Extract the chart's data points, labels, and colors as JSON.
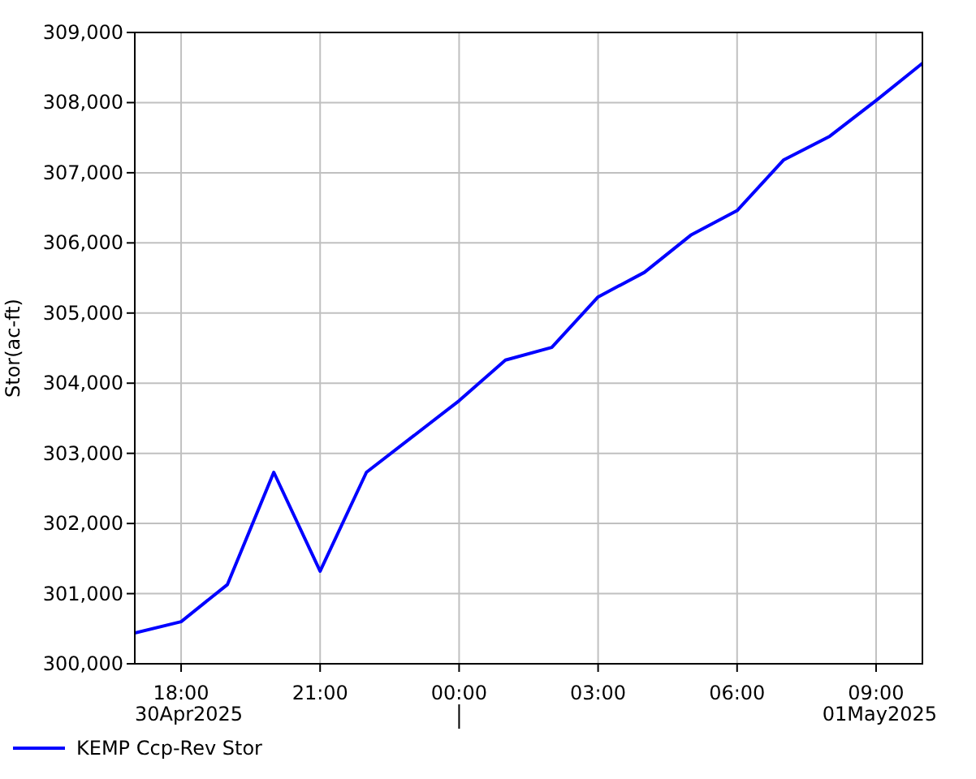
{
  "chart_data": {
    "type": "line",
    "ylabel": "Stor(ac-ft)",
    "x": [
      "2025-04-30T17:00",
      "2025-04-30T18:00",
      "2025-04-30T19:00",
      "2025-04-30T20:00",
      "2025-04-30T21:00",
      "2025-04-30T22:00",
      "2025-04-30T23:00",
      "2025-05-01T00:00",
      "2025-05-01T01:00",
      "2025-05-01T02:00",
      "2025-05-01T03:00",
      "2025-05-01T04:00",
      "2025-05-01T05:00",
      "2025-05-01T06:00",
      "2025-05-01T07:00",
      "2025-05-01T08:00",
      "2025-05-01T09:00",
      "2025-05-01T10:00"
    ],
    "series": [
      {
        "name": "KEMP Ccp-Rev Stor",
        "color": "#0000ff",
        "values": [
          300440,
          300600,
          301130,
          302730,
          301320,
          302730,
          303240,
          303750,
          304330,
          304510,
          305230,
          305580,
          306110,
          306460,
          307180,
          307520,
          308030,
          308560
        ]
      }
    ],
    "xlim": [
      "2025-04-30T17:00",
      "2025-05-01T10:00"
    ],
    "xticks": [
      {
        "value": "2025-04-30T18:00",
        "label": "18:00"
      },
      {
        "value": "2025-04-30T21:00",
        "label": "21:00"
      },
      {
        "value": "2025-05-01T00:00",
        "label": "00:00"
      },
      {
        "value": "2025-05-01T03:00",
        "label": "03:00"
      },
      {
        "value": "2025-05-01T06:00",
        "label": "06:00"
      },
      {
        "value": "2025-05-01T09:00",
        "label": "09:00"
      }
    ],
    "ylim": [
      300000,
      309000
    ],
    "yticks": [
      {
        "value": 300000,
        "label": "300,000"
      },
      {
        "value": 301000,
        "label": "301,000"
      },
      {
        "value": 302000,
        "label": "302,000"
      },
      {
        "value": 303000,
        "label": "303,000"
      },
      {
        "value": 304000,
        "label": "304,000"
      },
      {
        "value": 305000,
        "label": "305,000"
      },
      {
        "value": 306000,
        "label": "306,000"
      },
      {
        "value": 307000,
        "label": "307,000"
      },
      {
        "value": 308000,
        "label": "308,000"
      },
      {
        "value": 309000,
        "label": "309,000"
      }
    ],
    "annotations": [
      "30Apr2025",
      "01May2025"
    ],
    "grid": true,
    "legend": "bottom",
    "marker": "none",
    "line_style": "solid"
  }
}
